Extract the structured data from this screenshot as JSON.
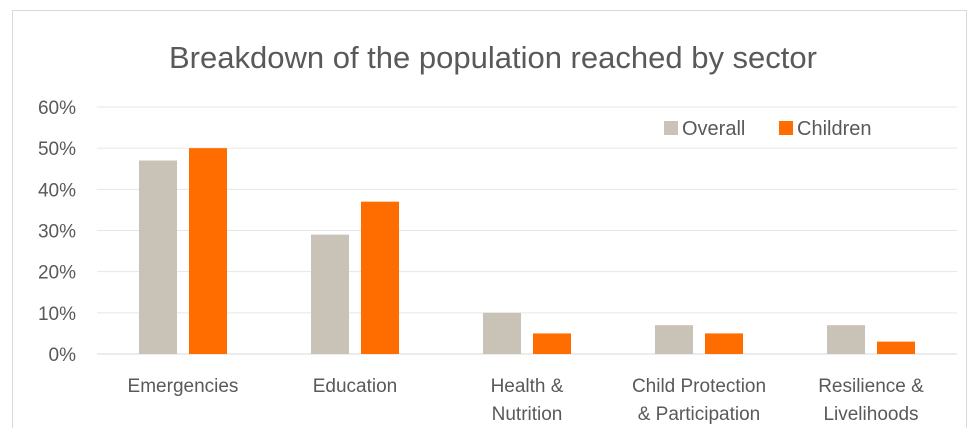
{
  "chart_data": {
    "type": "bar",
    "title": "Breakdown of the population reached by sector",
    "xlabel": "",
    "ylabel": "",
    "categories": [
      [
        "Emergencies"
      ],
      [
        "Education"
      ],
      [
        "Health &",
        "Nutrition"
      ],
      [
        "Child Protection",
        "& Participation"
      ],
      [
        "Resilience &",
        "Livelihoods"
      ]
    ],
    "series": [
      {
        "name": "Overall",
        "color": "#c9c2b7",
        "values": [
          47,
          29,
          10,
          7,
          7
        ]
      },
      {
        "name": "Children",
        "color": "#ff6c00",
        "values": [
          50,
          37,
          5,
          5,
          3
        ]
      }
    ],
    "ylim": [
      0,
      60
    ],
    "yticks": [
      "0%",
      "10%",
      "20%",
      "30%",
      "40%",
      "50%",
      "60%"
    ],
    "grid": true,
    "legend_position": "top-right"
  }
}
